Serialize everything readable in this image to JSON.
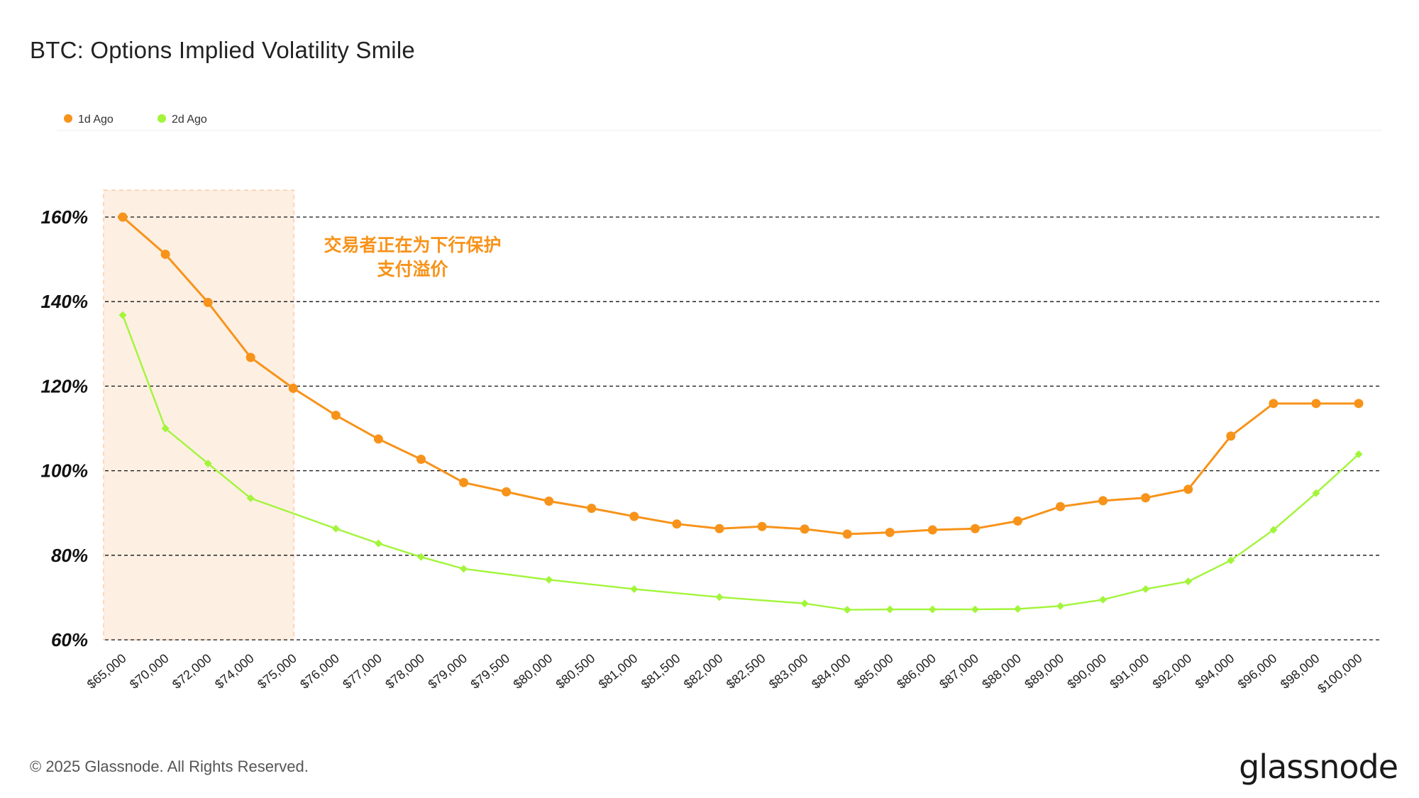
{
  "title": "BTC: Options Implied Volatility Smile",
  "footer": "© 2025 Glassnode. All Rights Reserved.",
  "brand": "glassnode",
  "colors": {
    "series_1d": "#f7931a",
    "series_2d": "#a2f53a",
    "highlight": "#fdefe2"
  },
  "chart_data": {
    "type": "line",
    "title": "BTC: Options Implied Volatility Smile",
    "xlabel": "",
    "ylabel": "",
    "ylim": [
      60,
      160
    ],
    "yticks": [
      60,
      80,
      100,
      120,
      140,
      160
    ],
    "ytick_labels": [
      "60%",
      "80%",
      "100%",
      "120%",
      "140%",
      "160%"
    ],
    "grid": true,
    "legend_position": "top-left",
    "categories": [
      "$65,000",
      "$70,000",
      "$72,000",
      "$74,000",
      "$75,000",
      "$76,000",
      "$77,000",
      "$78,000",
      "$79,000",
      "$79,500",
      "$80,000",
      "$80,500",
      "$81,000",
      "$81,500",
      "$82,000",
      "$82,500",
      "$83,000",
      "$84,000",
      "$85,000",
      "$86,000",
      "$87,000",
      "$88,000",
      "$89,000",
      "$90,000",
      "$91,000",
      "$92,000",
      "$94,000",
      "$96,000",
      "$98,000",
      "$100,000"
    ],
    "series": [
      {
        "name": "1d Ago",
        "marker": "circle",
        "values": [
          160,
          151.2,
          139.8,
          126.8,
          119.5,
          113.1,
          107.5,
          102.7,
          97.2,
          95.0,
          92.8,
          91.1,
          89.2,
          87.4,
          86.3,
          86.8,
          86.2,
          85.0,
          85.4,
          86.0,
          86.3,
          88.1,
          91.5,
          92.9,
          93.6,
          95.6,
          108.2,
          115.9,
          115.9,
          115.9
        ]
      },
      {
        "name": "2d Ago",
        "marker": "diamond",
        "values": [
          136.8,
          110.0,
          101.7,
          93.5,
          null,
          86.3,
          82.8,
          79.6,
          76.8,
          null,
          74.2,
          null,
          72.0,
          null,
          70.1,
          null,
          68.6,
          67.1,
          67.2,
          67.2,
          67.2,
          67.3,
          68.0,
          69.5,
          72.0,
          73.8,
          78.8,
          86.0,
          94.7,
          103.9
        ]
      }
    ],
    "highlight_region": {
      "from": "$65,000",
      "to": "$75,000",
      "annotation": [
        "交易者正在为下行保护",
        "支付溢价"
      ]
    }
  }
}
